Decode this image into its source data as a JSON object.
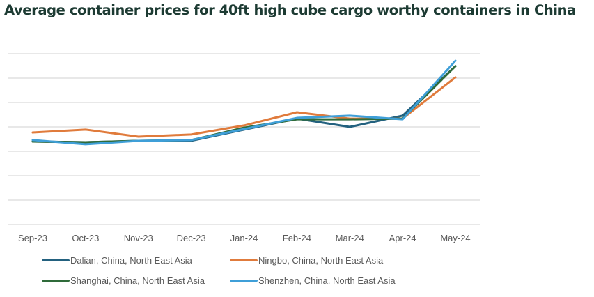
{
  "chart_data": {
    "type": "line",
    "title": "Average container prices for 40ft high cube cargo worthy containers in China",
    "xlabel": "",
    "ylabel": "",
    "y_axis_labels_shown": false,
    "y_units_note": "Relative scale (gridline units); no y-axis values shown",
    "ylim": [
      0,
      7
    ],
    "grid": true,
    "legend_position": "bottom",
    "categories": [
      "Sep-23",
      "Oct-23",
      "Nov-23",
      "Dec-23",
      "Jan-24",
      "Feb-24",
      "Mar-24",
      "Apr-24",
      "May-24"
    ],
    "series": [
      {
        "name": "Dalian, China, North East Asia",
        "color": "#23617f",
        "values": [
          3.4,
          3.37,
          3.43,
          3.43,
          3.89,
          4.34,
          4.0,
          4.46,
          6.49
        ]
      },
      {
        "name": "Ningbo, China, North East Asia",
        "color": "#e07b3c",
        "values": [
          3.77,
          3.89,
          3.6,
          3.69,
          4.06,
          4.6,
          4.34,
          4.34,
          6.03
        ]
      },
      {
        "name": "Shanghai, China, North East Asia",
        "color": "#2f6b3a",
        "values": [
          3.4,
          3.37,
          3.43,
          3.46,
          3.97,
          4.31,
          4.31,
          4.34,
          6.49
        ]
      },
      {
        "name": "Shenzhen, China, North East Asia",
        "color": "#3f9fd8",
        "values": [
          3.46,
          3.29,
          3.43,
          3.46,
          3.91,
          4.37,
          4.46,
          4.31,
          6.71
        ]
      }
    ]
  }
}
